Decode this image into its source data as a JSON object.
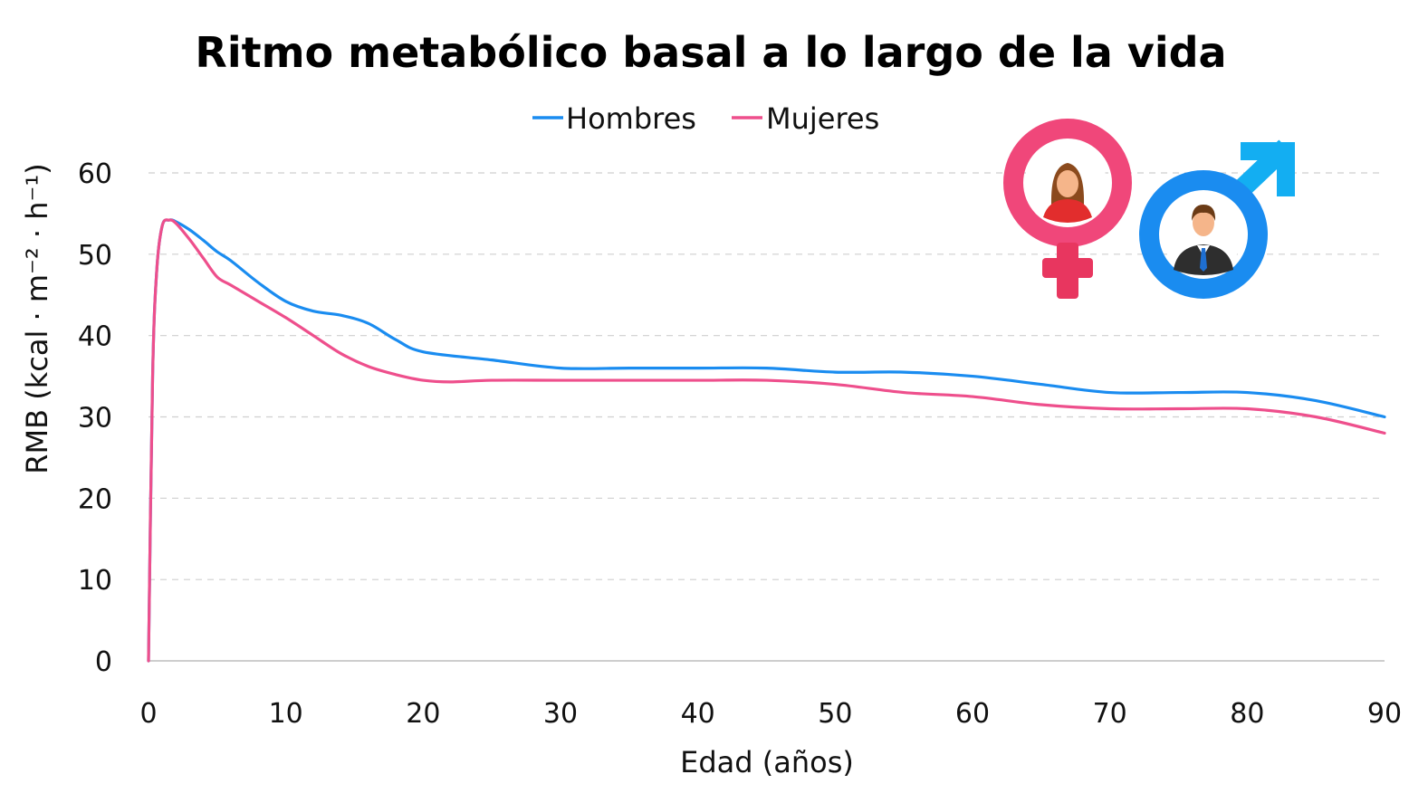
{
  "colors": {
    "hombres": "#1a8cf0",
    "mujeres": "#ee4f8c",
    "female_symbol": "#f0477a",
    "male_symbol": "#1a8cf0"
  },
  "icons": [
    "female-symbol-icon",
    "male-symbol-icon",
    "woman-avatar-icon",
    "man-avatar-icon"
  ],
  "chart_data": {
    "type": "line",
    "title": "Ritmo metabólico basal a lo largo de la vida",
    "xlabel": "Edad (años)",
    "ylabel": "RMB (kcal · m⁻² · h⁻¹)",
    "xlim": [
      0,
      90
    ],
    "ylim": [
      0,
      60
    ],
    "xticks": [
      0,
      10,
      20,
      30,
      40,
      50,
      60,
      70,
      80,
      90
    ],
    "yticks": [
      0,
      10,
      20,
      30,
      40,
      50,
      60
    ],
    "xtick_labels": [
      "0",
      "10",
      "20",
      "30",
      "40",
      "50",
      "60",
      "70",
      "80",
      "90"
    ],
    "ytick_labels": [
      "0",
      "10",
      "20",
      "30",
      "40",
      "50",
      "60"
    ],
    "grid": "horizontal dashed",
    "legend": "top-center",
    "series": [
      {
        "name": "Hombres",
        "x": [
          0,
          0.3,
          0.6,
          1,
          1.5,
          2,
          3,
          4,
          5,
          6,
          8,
          10,
          12,
          14,
          16,
          18,
          20,
          25,
          30,
          35,
          40,
          45,
          50,
          55,
          60,
          65,
          70,
          75,
          80,
          85,
          90
        ],
        "y": [
          0,
          35,
          48,
          53.5,
          54.2,
          54,
          53,
          51.7,
          50.3,
          49.2,
          46.5,
          44.2,
          43,
          42.5,
          41.5,
          39.5,
          38,
          37,
          36,
          36,
          36,
          36,
          35.5,
          35.5,
          35,
          34,
          33,
          33,
          33,
          32,
          30
        ]
      },
      {
        "name": "Mujeres",
        "x": [
          0,
          0.3,
          0.6,
          1,
          1.5,
          2,
          3,
          4,
          5,
          6,
          8,
          10,
          12,
          14,
          16,
          18,
          20,
          22,
          25,
          30,
          35,
          40,
          45,
          50,
          55,
          60,
          65,
          70,
          75,
          80,
          85,
          90
        ],
        "y": [
          0,
          35,
          48,
          53.5,
          54.2,
          53.8,
          51.8,
          49.5,
          47.2,
          46.2,
          44.2,
          42.2,
          40,
          37.8,
          36.2,
          35.2,
          34.5,
          34.3,
          34.5,
          34.5,
          34.5,
          34.5,
          34.5,
          34,
          33,
          32.5,
          31.5,
          31,
          31,
          31,
          30,
          28
        ]
      }
    ]
  }
}
